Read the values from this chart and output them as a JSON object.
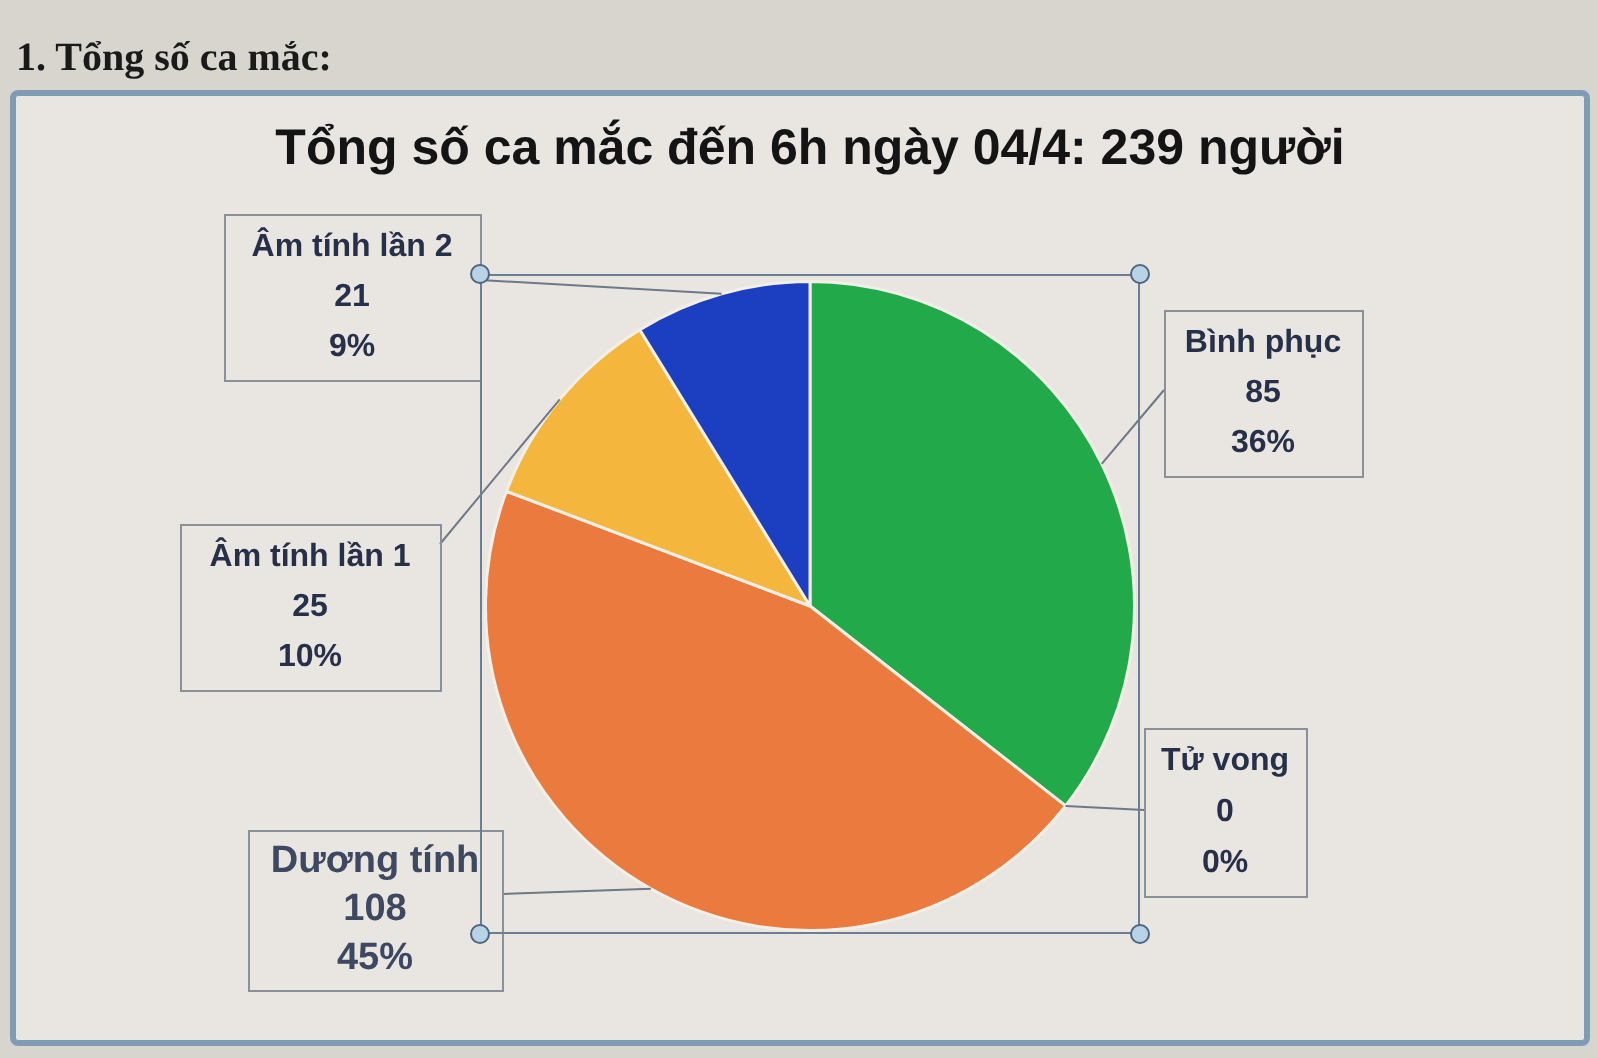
{
  "chart_data": {
    "type": "pie",
    "title": "Tổng số ca mắc đến 6h ngày 04/4: 239 người",
    "annotations": [
      "1. Tổng số ca mắc:"
    ],
    "categories": [
      "Bình phục",
      "Tử vong",
      "Dương tính",
      "Âm tính lần 1",
      "Âm tính lần 2"
    ],
    "values": [
      85,
      0,
      108,
      25,
      21
    ],
    "colors": [
      "#22a94a",
      "#8c8c8c",
      "#eb7a3e",
      "#f4b63c",
      "#1b3fc0"
    ],
    "value_labels": [
      "85\n36%",
      "0\n0%",
      "108\n45%",
      "25\n10%",
      "21\n9%"
    ]
  }
}
